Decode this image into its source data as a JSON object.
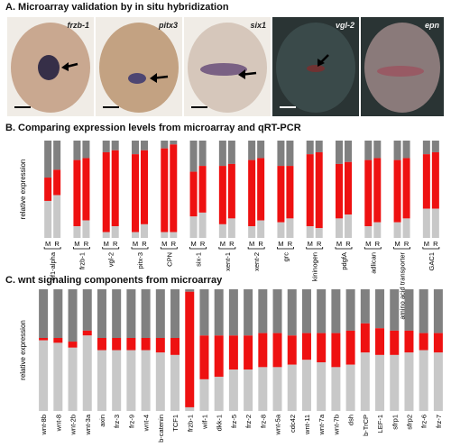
{
  "panels": {
    "a": {
      "title": "A. Microarray validation by in situ hybridization",
      "images": [
        {
          "label": "frzb-1",
          "stain": "#1c1a3c",
          "bg": "#c9a890",
          "dark": false
        },
        {
          "label": "pitx3",
          "stain": "#3a3670",
          "bg": "#c3a282",
          "dark": false
        },
        {
          "label": "six1",
          "stain": "#6a4f7a",
          "bg": "#d6c7bb",
          "dark": false
        },
        {
          "label": "vgl-2",
          "stain": "#7a2e2e",
          "bg": "#3a4a4a",
          "dark": true
        },
        {
          "label": "epn",
          "stain": "#9a5560",
          "bg": "#8a7a7a",
          "dark": true
        }
      ]
    },
    "b": {
      "title": "B. Comparing expression levels from microarray and qRT-PCR"
    },
    "c": {
      "title": "C. wnt signaling components from microarray"
    }
  },
  "chart_data": [
    {
      "type": "bar",
      "stacked": true,
      "ylabel": "relative expression",
      "pair_labels": [
        "M",
        "R"
      ],
      "colors": {
        "bottom": "#c8c8c8",
        "middle": "#ee1111",
        "top": "#808080"
      },
      "categories": [
        "ef1-alpha",
        "frzb-1",
        "vgl-2",
        "pitx-3",
        "CPN",
        "six-1",
        "xent-1",
        "xent-2",
        "grc",
        "kininogen",
        "pdgfA",
        "adlican",
        "amino acid transporter",
        "GAC1"
      ],
      "series": [
        {
          "name": "M",
          "bottom": [
            0.38,
            0.12,
            0.06,
            0.06,
            0.06,
            0.22,
            0.14,
            0.12,
            0.16,
            0.12,
            0.2,
            0.12,
            0.16,
            0.3
          ],
          "middle": [
            0.24,
            0.68,
            0.82,
            0.8,
            0.86,
            0.46,
            0.6,
            0.68,
            0.58,
            0.74,
            0.56,
            0.68,
            0.64,
            0.56
          ]
        },
        {
          "name": "R",
          "bottom": [
            0.44,
            0.18,
            0.12,
            0.14,
            0.06,
            0.26,
            0.2,
            0.18,
            0.2,
            0.1,
            0.24,
            0.16,
            0.2,
            0.3
          ],
          "middle": [
            0.26,
            0.64,
            0.78,
            0.76,
            0.9,
            0.48,
            0.56,
            0.64,
            0.54,
            0.78,
            0.54,
            0.66,
            0.62,
            0.58
          ]
        }
      ]
    },
    {
      "type": "bar",
      "stacked": true,
      "ylabel": "relative expression",
      "colors": {
        "bottom": "#c8c8c8",
        "middle": "#ee1111",
        "top": "#808080"
      },
      "categories": [
        "wnt-8b",
        "wnt-8",
        "wnt-2b",
        "wnt-3a",
        "axin",
        "frz-3",
        "frz-9",
        "wnt-4",
        "b-catenin",
        "TCF1",
        "frzb-1",
        "wif-1",
        "dkk-1",
        "frz-5",
        "frz-2",
        "frz-8",
        "wnt-5a",
        "cdc42",
        "wnt-11",
        "wnt-7a",
        "wnt-7b",
        "dsh",
        "b-TrCP",
        "LEF-1",
        "sfrp1",
        "sfrp2",
        "frz-6",
        "frz-7"
      ],
      "bottom": [
        0.58,
        0.56,
        0.52,
        0.62,
        0.5,
        0.5,
        0.5,
        0.5,
        0.48,
        0.46,
        0.03,
        0.26,
        0.28,
        0.34,
        0.34,
        0.36,
        0.36,
        0.38,
        0.42,
        0.4,
        0.36,
        0.38,
        0.48,
        0.46,
        0.46,
        0.48,
        0.5,
        0.48
      ],
      "middle": [
        0.02,
        0.04,
        0.05,
        0.04,
        0.1,
        0.1,
        0.1,
        0.1,
        0.12,
        0.14,
        0.95,
        0.36,
        0.34,
        0.28,
        0.28,
        0.28,
        0.28,
        0.24,
        0.22,
        0.24,
        0.28,
        0.28,
        0.24,
        0.22,
        0.2,
        0.18,
        0.14,
        0.16
      ]
    }
  ]
}
